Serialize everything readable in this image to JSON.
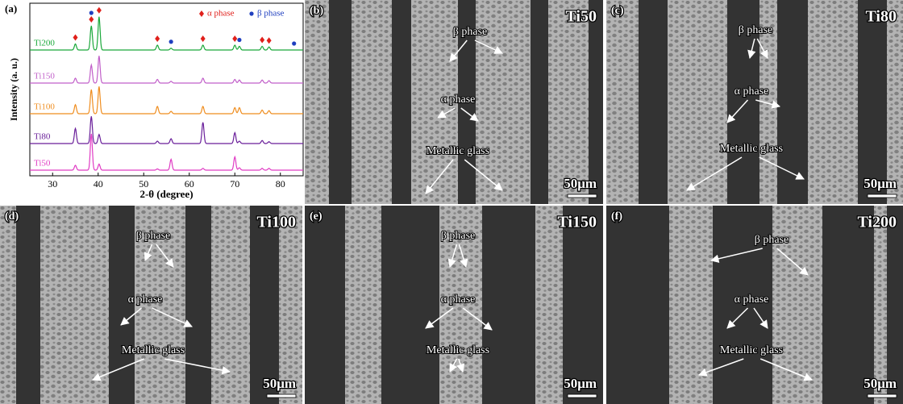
{
  "chart_data": {
    "type": "line",
    "panel_label": "(a)",
    "xlabel": "2-θ (degree)",
    "ylabel": "Intensity (a. u.)",
    "xlim": [
      25,
      85
    ],
    "xticks": [
      30,
      40,
      50,
      60,
      70,
      80
    ],
    "x": [
      35,
      38.5,
      40.2,
      53,
      56,
      63,
      70,
      71,
      76,
      77.5
    ],
    "series": [
      {
        "name": "Ti200",
        "color": "#1aa83a",
        "values": [
          10,
          40,
          55,
          8,
          3,
          8,
          8,
          6,
          6,
          5
        ]
      },
      {
        "name": "Ti150",
        "color": "#c15fc9",
        "values": [
          8,
          30,
          45,
          6,
          3,
          8,
          6,
          5,
          5,
          4
        ]
      },
      {
        "name": "Ti100",
        "color": "#ef8d1f",
        "values": [
          15,
          40,
          45,
          12,
          4,
          12,
          10,
          10,
          6,
          5
        ]
      },
      {
        "name": "Ti80",
        "color": "#6a1f9a",
        "values": [
          25,
          45,
          15,
          4,
          8,
          35,
          18,
          4,
          5,
          3
        ]
      },
      {
        "name": "Ti50",
        "color": "#e03cc4",
        "values": [
          8,
          60,
          10,
          2,
          18,
          3,
          22,
          4,
          3,
          3
        ]
      }
    ],
    "legend": [
      {
        "name": "α phase",
        "color": "#e0201b",
        "positions": [
          35,
          38.5,
          40.2,
          53,
          63,
          70,
          76,
          77.5
        ]
      },
      {
        "name": "β phase",
        "color": "#1f3fbf",
        "positions": [
          38.5,
          56,
          71,
          83
        ]
      }
    ]
  },
  "micrographs": [
    {
      "label": "(b)",
      "sample": "Ti50",
      "annotations": [
        "β phase",
        "α phase",
        "Metallic glass"
      ],
      "scale_bar": "50μm"
    },
    {
      "label": "(c)",
      "sample": "Ti80",
      "annotations": [
        "β phase",
        "α phase",
        "Metallic glass"
      ],
      "scale_bar": "50μm"
    },
    {
      "label": "(d)",
      "sample": "Ti100",
      "annotations": [
        "β phase",
        "α phase",
        "Metallic glass"
      ],
      "scale_bar": "50μm"
    },
    {
      "label": "(e)",
      "sample": "Ti150",
      "annotations": [
        "β phase",
        "α phase",
        "Metallic glass"
      ],
      "scale_bar": "50μm"
    },
    {
      "label": "(f)",
      "sample": "Ti200",
      "annotations": [
        "β phase",
        "α phase",
        "Metallic glass"
      ],
      "scale_bar": "50μm"
    }
  ]
}
